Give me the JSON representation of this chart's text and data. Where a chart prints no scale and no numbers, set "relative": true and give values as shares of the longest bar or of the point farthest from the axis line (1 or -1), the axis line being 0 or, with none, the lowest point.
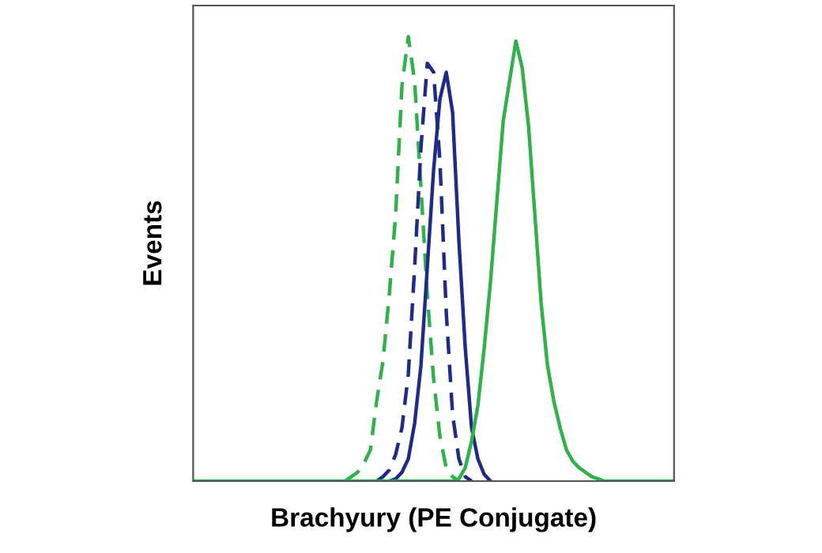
{
  "chart_data": {
    "type": "line",
    "relative": true,
    "xlabel": "Brachyury (PE Conjugate)",
    "ylabel": "Events",
    "tick_labels": false,
    "grid": false,
    "legend": false,
    "marker": "none",
    "categories": [
      null,
      null,
      null,
      null,
      null,
      null,
      null,
      null,
      null,
      null,
      null,
      null,
      null,
      null,
      null,
      null,
      null,
      null,
      null,
      null,
      null,
      null,
      null,
      null,
      null,
      null,
      null,
      null,
      null,
      null,
      null,
      null,
      null,
      null,
      null,
      null,
      null,
      null,
      null,
      null,
      null,
      null,
      null,
      null,
      null,
      null,
      null,
      null,
      null,
      null,
      null,
      null,
      null,
      null,
      null,
      null,
      null,
      null,
      null,
      null,
      null,
      null,
      null,
      null,
      null,
      null,
      null,
      null,
      null,
      null,
      null,
      null,
      null,
      null,
      null,
      null,
      null
    ],
    "series": [
      {
        "color": "#2db34a",
        "line_style": "dashed",
        "values": [
          null,
          null,
          null,
          null,
          null,
          null,
          null,
          null,
          null,
          null,
          null,
          null,
          null,
          null,
          null,
          null,
          null,
          null,
          null,
          null,
          null,
          null,
          null,
          null,
          0,
          0.01,
          0.02,
          0.04,
          0.07,
          0.18,
          0.27,
          0.42,
          0.6,
          0.89,
          1.0,
          0.9,
          0.66,
          0.42,
          0.23,
          0.1,
          0.03,
          0.01,
          0,
          null,
          null,
          null,
          null,
          null,
          null,
          null,
          null,
          null,
          null,
          null,
          null,
          null,
          null,
          null,
          null,
          null,
          null,
          null,
          null,
          null,
          null,
          null,
          null,
          null,
          null,
          null,
          null,
          null,
          null,
          null,
          null,
          null,
          null
        ]
      },
      {
        "color": "#1f2a8c",
        "line_style": "dashed",
        "values": [
          null,
          null,
          null,
          null,
          null,
          null,
          null,
          null,
          null,
          null,
          null,
          null,
          null,
          null,
          null,
          null,
          null,
          null,
          null,
          null,
          null,
          null,
          null,
          null,
          null,
          null,
          null,
          null,
          null,
          0,
          0.01,
          0.025,
          0.06,
          0.12,
          0.24,
          0.48,
          0.75,
          0.94,
          0.92,
          0.72,
          0.38,
          0.15,
          0.05,
          0.01,
          0,
          null,
          null,
          null,
          null,
          null,
          null,
          null,
          null,
          null,
          null,
          null,
          null,
          null,
          null,
          null,
          null,
          null,
          null,
          null,
          null,
          null,
          null,
          null,
          null,
          null,
          null,
          null,
          null,
          null,
          null,
          null,
          null
        ]
      },
      {
        "color": "#1f2a8c",
        "line_style": "solid",
        "values": [
          null,
          null,
          null,
          null,
          null,
          null,
          null,
          null,
          null,
          null,
          null,
          null,
          null,
          null,
          null,
          null,
          null,
          null,
          null,
          null,
          null,
          null,
          null,
          null,
          null,
          null,
          null,
          null,
          null,
          null,
          null,
          0,
          0.005,
          0.02,
          0.05,
          0.13,
          0.26,
          0.48,
          0.7,
          0.86,
          0.92,
          0.83,
          0.54,
          0.3,
          0.12,
          0.05,
          0.015,
          0,
          null,
          null,
          null,
          null,
          null,
          null,
          null,
          null,
          null,
          null,
          null,
          null,
          null,
          null,
          null,
          null,
          null,
          null,
          null,
          null,
          null,
          null,
          null,
          null,
          null,
          null,
          null,
          null,
          null
        ]
      },
      {
        "color": "#2db34a",
        "line_style": "solid",
        "values": [
          0,
          0,
          0,
          0,
          0,
          0,
          0,
          0,
          0,
          0,
          0,
          0,
          0,
          0,
          0,
          0,
          0,
          0,
          0,
          0,
          0,
          0,
          0,
          0,
          0,
          0,
          0,
          0,
          0,
          0,
          0,
          0,
          0,
          0,
          0,
          0,
          0,
          0,
          0,
          0,
          0,
          0,
          0.005,
          0.03,
          0.09,
          0.17,
          0.3,
          0.45,
          0.63,
          0.81,
          0.9,
          0.99,
          0.93,
          0.8,
          0.6,
          0.4,
          0.26,
          0.18,
          0.12,
          0.07,
          0.045,
          0.03,
          0.02,
          0.01,
          0.005,
          0,
          0,
          0,
          0,
          0,
          0,
          0,
          0,
          0,
          0,
          0,
          0
        ]
      }
    ]
  }
}
